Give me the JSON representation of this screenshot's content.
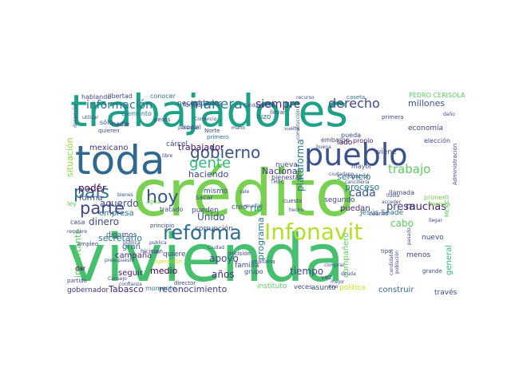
{
  "word_cloud": {
    "palette": [
      "#440154",
      "#3b528b",
      "#21918c",
      "#5ec962",
      "#c8e020",
      "#7ad151"
    ],
    "words": [
      {
        "text": "vivienda",
        "color": "#46c06f"
      },
      {
        "text": "crédito",
        "color": "#7ad151"
      },
      {
        "text": "trabajadores",
        "color": "#1fa187"
      },
      {
        "text": "toda",
        "color": "#31688e"
      },
      {
        "text": "pueblo",
        "color": "#3b528b"
      },
      {
        "text": "Infonavit",
        "color": "#b5de2b"
      },
      {
        "text": "reforma",
        "color": "#2e6e8e"
      },
      {
        "text": "país",
        "color": "#2c728e"
      },
      {
        "text": "gobierno",
        "color": "#3b528b"
      },
      {
        "text": "parte",
        "color": "#414487"
      },
      {
        "text": "hoy",
        "color": "#39568c"
      },
      {
        "text": "gente",
        "color": "#35b779"
      },
      {
        "text": "manera",
        "color": "#2a788e"
      },
      {
        "text": "derecho",
        "color": "#3e4a89"
      },
      {
        "text": "información",
        "color": "#2c728e"
      },
      {
        "text": "siempre",
        "color": "#472d7b"
      },
      {
        "text": "trabajo",
        "color": "#5ec962"
      },
      {
        "text": "haciendo",
        "color": "#3e4989"
      },
      {
        "text": "trabajador",
        "color": "#471063"
      },
      {
        "text": "Nacional",
        "color": "#46337f"
      },
      {
        "text": "plataforma",
        "color": "#2a788e"
      },
      {
        "text": "cada",
        "color": "#39568c"
      },
      {
        "text": "muchas",
        "color": "#482173"
      },
      {
        "text": "millones",
        "color": "#3b528b"
      },
      {
        "text": "poder",
        "color": "#440154"
      },
      {
        "text": "dinero",
        "color": "#3e4a89"
      },
      {
        "text": "forma",
        "color": "#414487"
      },
      {
        "text": "acuerdo",
        "color": "#3b528b"
      },
      {
        "text": "mexicano",
        "color": "#472d7b"
      },
      {
        "text": "secretario",
        "color": "#2c728e"
      },
      {
        "text": "apoyo",
        "color": "#3e4989"
      },
      {
        "text": "medio",
        "color": "#440154"
      },
      {
        "text": "años",
        "color": "#46327e"
      },
      {
        "text": "Tabasco",
        "color": "#482576"
      },
      {
        "text": "reconocimiento",
        "color": "#443983"
      },
      {
        "text": "presa",
        "color": "#433e85"
      },
      {
        "text": "servicio",
        "color": "#2a788e"
      },
      {
        "text": "proceso",
        "color": "#2a788e"
      },
      {
        "text": "tiempo",
        "color": "#3e4989"
      },
      {
        "text": "construir",
        "color": "#31688e"
      },
      {
        "text": "importante",
        "color": "#5ec962"
      },
      {
        "text": "Unido",
        "color": "#3b528b"
      },
      {
        "text": "situación",
        "color": "#8fd744"
      },
      {
        "text": "economía",
        "color": "#3e4989"
      },
      {
        "text": "puedan",
        "color": "#482878"
      },
      {
        "text": "empresa",
        "color": "#2c728e"
      },
      {
        "text": "segundo",
        "color": "#3e4989"
      },
      {
        "text": "río",
        "color": "#1f9e89"
      },
      {
        "text": "cárcel",
        "color": "#3e4989"
      },
      {
        "text": "corrupción",
        "color": "#3b528b"
      },
      {
        "text": "campaña",
        "color": "#472d7b"
      },
      {
        "text": "gran",
        "color": "#31688e"
      },
      {
        "text": "seguir",
        "color": "#48186a"
      },
      {
        "text": "Jesús Seade",
        "color": "#2c728e"
      },
      {
        "text": "cabo",
        "color": "#5ec962"
      },
      {
        "text": "general",
        "color": "#35b779"
      },
      {
        "text": "través",
        "color": "#3e4989"
      },
      {
        "text": "necesidades",
        "color": "#3b528b"
      },
      {
        "text": "libertad",
        "color": "#3e4989"
      },
      {
        "text": "elemento",
        "color": "#2a788e"
      },
      {
        "text": "nadie",
        "color": "#46337f"
      },
      {
        "text": "lado",
        "color": "#440154"
      },
      {
        "text": "nueva",
        "color": "#3b528b"
      },
      {
        "text": "embargo",
        "color": "#3e4989"
      },
      {
        "text": "propio",
        "color": "#48186a"
      },
      {
        "text": "mayor",
        "color": "#3b528b"
      },
      {
        "text": "llamada",
        "color": "#3e4989"
      },
      {
        "text": "nuevo",
        "color": "#3e4989"
      },
      {
        "text": "menos",
        "color": "#433e85"
      },
      {
        "text": "momento",
        "color": "#2c728e"
      },
      {
        "text": "instituto",
        "color": "#5ec962"
      },
      {
        "text": "asunto",
        "color": "#3e4989"
      },
      {
        "text": "política",
        "color": "#c8e020"
      },
      {
        "text": "creo",
        "color": "#3b528b"
      },
      {
        "text": "pueden",
        "color": "#3e4989"
      },
      {
        "text": "digamos",
        "color": "#3b528b"
      },
      {
        "text": "quiere",
        "color": "#3e4989"
      },
      {
        "text": "gobernador",
        "color": "#46327e"
      },
      {
        "text": "mismo",
        "color": "#3b528b"
      },
      {
        "text": "sacar",
        "color": "#3e4989"
      },
      {
        "text": "tratado",
        "color": "#3b528b"
      },
      {
        "text": "casa",
        "color": "#3e4989"
      },
      {
        "text": "ley",
        "color": "#5ec962"
      },
      {
        "text": "hizo",
        "color": "#31688e"
      },
      {
        "text": "vez",
        "color": "#3e4989"
      },
      {
        "text": "hablando",
        "color": "#3e4989"
      },
      {
        "text": "conocer",
        "color": "#2c728e"
      },
      {
        "text": "fondo",
        "color": "#3e4989"
      },
      {
        "text": "social",
        "color": "#3b528b"
      },
      {
        "text": "sólo",
        "color": "#3e4989"
      },
      {
        "text": "quieren",
        "color": "#3e4989"
      },
      {
        "text": "familia",
        "color": "#3b528b"
      },
      {
        "text": "grupo",
        "color": "#3e4989"
      },
      {
        "text": "veces",
        "color": "#3e4989"
      },
      {
        "text": "mañana",
        "color": "#3e4989"
      },
      {
        "text": "elección",
        "color": "#3e4989"
      },
      {
        "text": "pueda",
        "color": "#3e4989"
      },
      {
        "text": "primera",
        "color": "#3e4989"
      },
      {
        "text": "programa",
        "color": "#2a788e"
      },
      {
        "text": "primero",
        "color": "#2c728e"
      },
      {
        "text": "PEDRO CERISOLA",
        "color": "#5ec962"
      },
      {
        "text": "Administración",
        "color": "#3e4989"
      },
      {
        "text": "cuesta",
        "color": "#3e4989"
      },
      {
        "text": "bienestar",
        "color": "#3e4989"
      },
      {
        "text": "decisión",
        "color": "#3e4989"
      },
      {
        "text": "partido",
        "color": "#3e4989"
      },
      {
        "text": "empleo",
        "color": "#3e4989"
      },
      {
        "text": "hicieron",
        "color": "#3e4989"
      },
      {
        "text": "dar",
        "color": "#440154"
      },
      {
        "text": "caseta",
        "color": "#2c728e"
      },
      {
        "text": "tipo",
        "color": "#3e4989"
      },
      {
        "text": "control",
        "color": "#3e4989"
      },
      {
        "text": "grande",
        "color": "#3e4989"
      },
      {
        "text": "cuanto",
        "color": "#3e4989"
      },
      {
        "text": "llevar",
        "color": "#3e4989"
      },
      {
        "text": "Norte",
        "color": "#3e4989"
      },
      {
        "text": "principio",
        "color": "#3e4989"
      },
      {
        "text": "director",
        "color": "#3e4989"
      },
      {
        "text": "pesos",
        "color": "#3e4989"
      },
      {
        "text": "agua",
        "color": "#7ad151"
      },
      {
        "text": "bienes",
        "color": "#3e4989"
      },
      {
        "text": "presupuesto",
        "color": "#3e4989"
      },
      {
        "text": "hecho",
        "color": "#3e4989"
      },
      {
        "text": "Ciudad",
        "color": "#3e4989"
      },
      {
        "text": "reunión",
        "color": "#3e4989"
      },
      {
        "text": "ciudadano",
        "color": "#3e4989"
      },
      {
        "text": "compañero",
        "color": "#5ec962"
      },
      {
        "text": "comprar",
        "color": "#3e4989"
      },
      {
        "text": "primer",
        "color": "#7ad151"
      },
      {
        "text": "frontera",
        "color": "#7ad151"
      },
      {
        "text": "pasado",
        "color": "#3e4989"
      },
      {
        "text": "viene",
        "color": "#3e4989"
      },
      {
        "text": "libre",
        "color": "#3e4989"
      },
      {
        "text": "Comercio",
        "color": "#3e4989"
      },
      {
        "text": "fundamental",
        "color": "#3e4989"
      },
      {
        "text": "recurso",
        "color": "#3e4989"
      },
      {
        "text": "MÉXICO",
        "color": "#5ec962"
      },
      {
        "text": "vuelta",
        "color": "#3e4989"
      },
      {
        "text": "mano",
        "color": "#3e4989"
      },
      {
        "text": "daño",
        "color": "#3e4989"
      },
      {
        "text": "lluvia",
        "color": "#3e4989"
      },
      {
        "text": "acceder",
        "color": "#3e4989"
      },
      {
        "text": "requiere",
        "color": "#3e4989"
      },
      {
        "text": "publica",
        "color": "#3e4989"
      },
      {
        "text": "pública",
        "color": "#3e4989"
      },
      {
        "text": "tan",
        "color": "#3e4989"
      },
      {
        "text": "Consejo",
        "color": "#3e4989"
      },
      {
        "text": "confianza",
        "color": "#3e4989"
      },
      {
        "text": "mejor",
        "color": "#3e4989"
      },
      {
        "text": "deuda",
        "color": "#3e4989"
      },
      {
        "text": "población",
        "color": "#3e4989"
      },
      {
        "text": "candidatos",
        "color": "#3e4989"
      },
      {
        "text": "desarrollo",
        "color": "#3e4989"
      },
      {
        "text": "utilizar",
        "color": "#3e4989"
      },
      {
        "text": "operación",
        "color": "#c8e020"
      },
      {
        "text": "construcción",
        "color": "#3e4989"
      },
      {
        "text": "personal",
        "color": "#3e4989"
      },
      {
        "text": "buena",
        "color": "#3e4989"
      },
      {
        "text": "cancillería",
        "color": "#3e4989"
      },
      {
        "text": "llegar",
        "color": "#3e4989"
      },
      {
        "text": "TMEC",
        "color": "#3e4989"
      },
      {
        "text": "sale",
        "color": "#3e4989"
      },
      {
        "text": "sino",
        "color": "#3e4989"
      }
    ]
  }
}
